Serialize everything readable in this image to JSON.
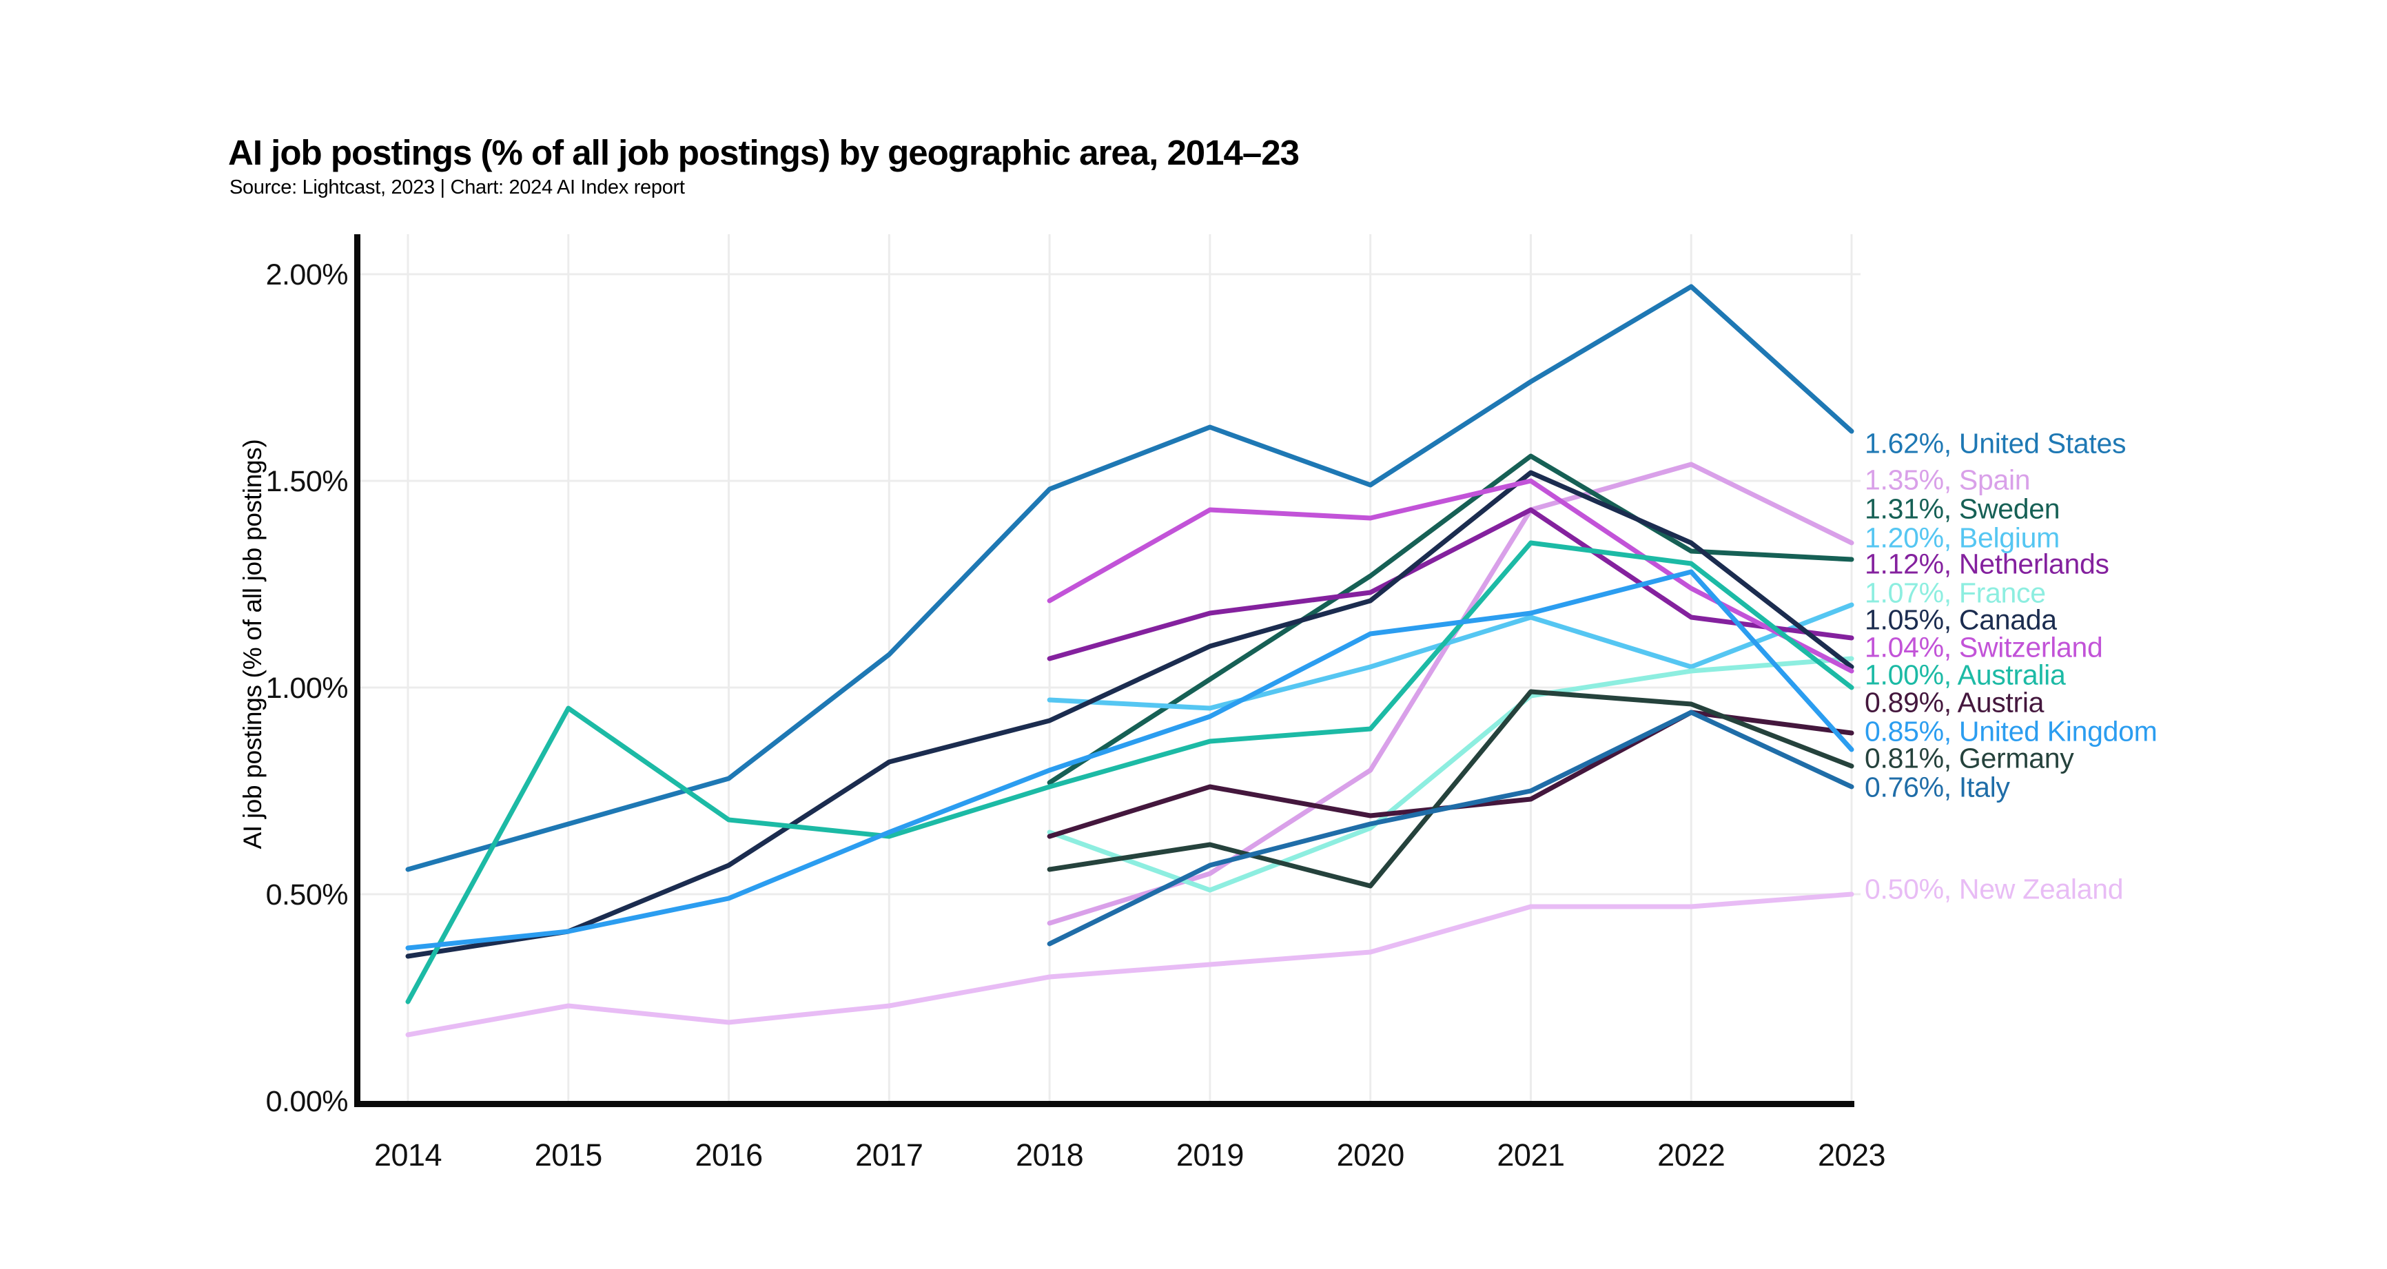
{
  "page": {
    "title": "AI job postings (% of all job postings) by geographic area, 2014–23",
    "subtitle": "Source: Lightcast, 2023 | Chart: 2024 AI Index report"
  },
  "chart_data": {
    "type": "line",
    "title": "AI job postings (% of all job postings) by geographic area, 2014–23",
    "subtitle": "Source: Lightcast, 2023 | Chart: 2024 AI Index report",
    "xlabel": "",
    "ylabel": "AI job postings (% of all job postings)",
    "x": [
      2014,
      2015,
      2016,
      2017,
      2018,
      2019,
      2020,
      2021,
      2022,
      2023
    ],
    "y_ticks": [
      "0.00%",
      "0.50%",
      "1.00%",
      "1.50%",
      "2.00%"
    ],
    "y_tick_values": [
      0.0,
      0.5,
      1.0,
      1.5,
      2.0
    ],
    "ylim": [
      0,
      2.1
    ],
    "grid": true,
    "legend_position": "right",
    "series": [
      {
        "name": "United States",
        "label": "1.62%, United States",
        "color": "#1e78b4",
        "values": [
          0.56,
          0.67,
          0.78,
          1.08,
          1.48,
          1.63,
          1.49,
          1.74,
          1.97,
          1.62
        ]
      },
      {
        "name": "Spain",
        "label": "1.35%, Spain",
        "color": "#d9a0e9",
        "values": [
          null,
          null,
          null,
          null,
          0.43,
          0.55,
          0.8,
          1.43,
          1.54,
          1.35
        ]
      },
      {
        "name": "Sweden",
        "label": "1.31%, Sweden",
        "color": "#166055",
        "values": [
          null,
          null,
          null,
          null,
          0.77,
          1.02,
          1.27,
          1.56,
          1.33,
          1.31
        ]
      },
      {
        "name": "Belgium",
        "label": "1.20%, Belgium",
        "color": "#55c6f2",
        "values": [
          null,
          null,
          null,
          null,
          0.97,
          0.95,
          1.05,
          1.17,
          1.05,
          1.2
        ]
      },
      {
        "name": "Netherlands",
        "label": "1.12%, Netherlands",
        "color": "#84219e",
        "values": [
          null,
          null,
          null,
          null,
          1.07,
          1.18,
          1.23,
          1.43,
          1.17,
          1.12
        ]
      },
      {
        "name": "France",
        "label": "1.07%, France",
        "color": "#8deee0",
        "values": [
          null,
          null,
          null,
          null,
          0.65,
          0.51,
          0.66,
          0.98,
          1.04,
          1.07
        ]
      },
      {
        "name": "Canada",
        "label": "1.05%, Canada",
        "color": "#1b2c4f",
        "values": [
          0.35,
          0.41,
          0.57,
          0.82,
          0.92,
          1.1,
          1.21,
          1.52,
          1.35,
          1.05
        ]
      },
      {
        "name": "Switzerland",
        "label": "1.04%, Switzerland",
        "color": "#c253d8",
        "values": [
          null,
          null,
          null,
          null,
          1.21,
          1.43,
          1.41,
          1.5,
          1.24,
          1.04
        ]
      },
      {
        "name": "Australia",
        "label": "1.00%, Australia",
        "color": "#1cbaa5",
        "values": [
          0.24,
          0.95,
          0.68,
          0.64,
          0.76,
          0.87,
          0.9,
          1.35,
          1.3,
          1.0
        ]
      },
      {
        "name": "Austria",
        "label": "0.89%, Austria",
        "color": "#44173d",
        "values": [
          null,
          null,
          null,
          null,
          0.64,
          0.76,
          0.69,
          0.73,
          0.94,
          0.89
        ]
      },
      {
        "name": "United Kingdom",
        "label": "0.85%, United Kingdom",
        "color": "#2b9df0",
        "values": [
          0.37,
          0.41,
          0.49,
          0.65,
          0.8,
          0.93,
          1.13,
          1.18,
          1.28,
          0.85
        ]
      },
      {
        "name": "Germany",
        "label": "0.81%, Germany",
        "color": "#25423c",
        "values": [
          null,
          null,
          null,
          null,
          0.56,
          0.62,
          0.52,
          0.99,
          0.96,
          0.81
        ]
      },
      {
        "name": "Italy",
        "label": "0.76%, Italy",
        "color": "#1f6da8",
        "values": [
          null,
          null,
          null,
          null,
          0.38,
          0.57,
          0.67,
          0.75,
          0.94,
          0.76
        ]
      },
      {
        "name": "New Zealand",
        "label": "0.50%, New Zealand",
        "color": "#e8bcf5",
        "values": [
          0.16,
          0.23,
          0.19,
          0.23,
          0.3,
          0.33,
          0.36,
          0.47,
          0.47,
          0.5
        ]
      }
    ]
  }
}
